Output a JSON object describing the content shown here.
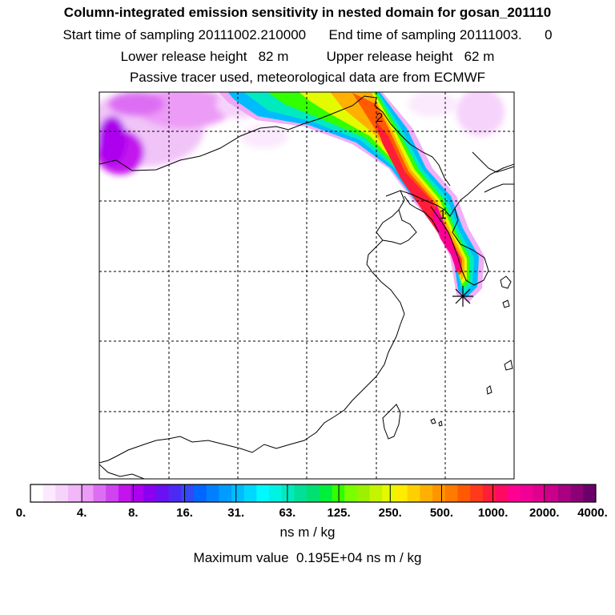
{
  "header": {
    "title": "Column-integrated emission sensitivity in nested domain for gosan_201110",
    "sampling_line": "Start time of sampling 20111002.210000      End time of sampling 20111003.      0",
    "release_line": "Lower release height   82 m          Upper release height   62 m",
    "tracer_line": "Passive tracer used, meteorological data are from ECMWF"
  },
  "map": {
    "release_point_labels": [
      "1",
      "2"
    ],
    "receptor_marker": "asterisk-icon"
  },
  "colorbar": {
    "tick_labels": [
      "0.",
      "4.",
      "8.",
      "16.",
      "31.",
      "63.",
      "125.",
      "250.",
      "500.",
      "1000.",
      "2000.",
      "4000."
    ],
    "colors": [
      "#ffffff",
      "#fbe9fd",
      "#f6d3fb",
      "#f1b7f8",
      "#ec9bf6",
      "#dd6ef3",
      "#d044f0",
      "#c414ee",
      "#ad00ee",
      "#8c00f0",
      "#6a10f2",
      "#4d2af4",
      "#3348f6",
      "#0066ff",
      "#0080ff",
      "#009cff",
      "#00bcff",
      "#00d8ff",
      "#00f8ff",
      "#00f2e0",
      "#00eac0",
      "#00e098",
      "#00e070",
      "#00ee3c",
      "#32ff00",
      "#7aff00",
      "#9cf000",
      "#c4f400",
      "#e4fa00",
      "#ffec00",
      "#ffd000",
      "#ffb000",
      "#ff9600",
      "#ff7a00",
      "#ff5a00",
      "#ff3a1a",
      "#ff1e3a",
      "#ff0a62",
      "#ff0092",
      "#f00096",
      "#e0008e",
      "#c8008a",
      "#aa0082",
      "#8c0078",
      "#6c006a"
    ],
    "units": "ns m / kg"
  },
  "footer": {
    "max_value": "Maximum value  0.195E+04 ns m / kg"
  }
}
